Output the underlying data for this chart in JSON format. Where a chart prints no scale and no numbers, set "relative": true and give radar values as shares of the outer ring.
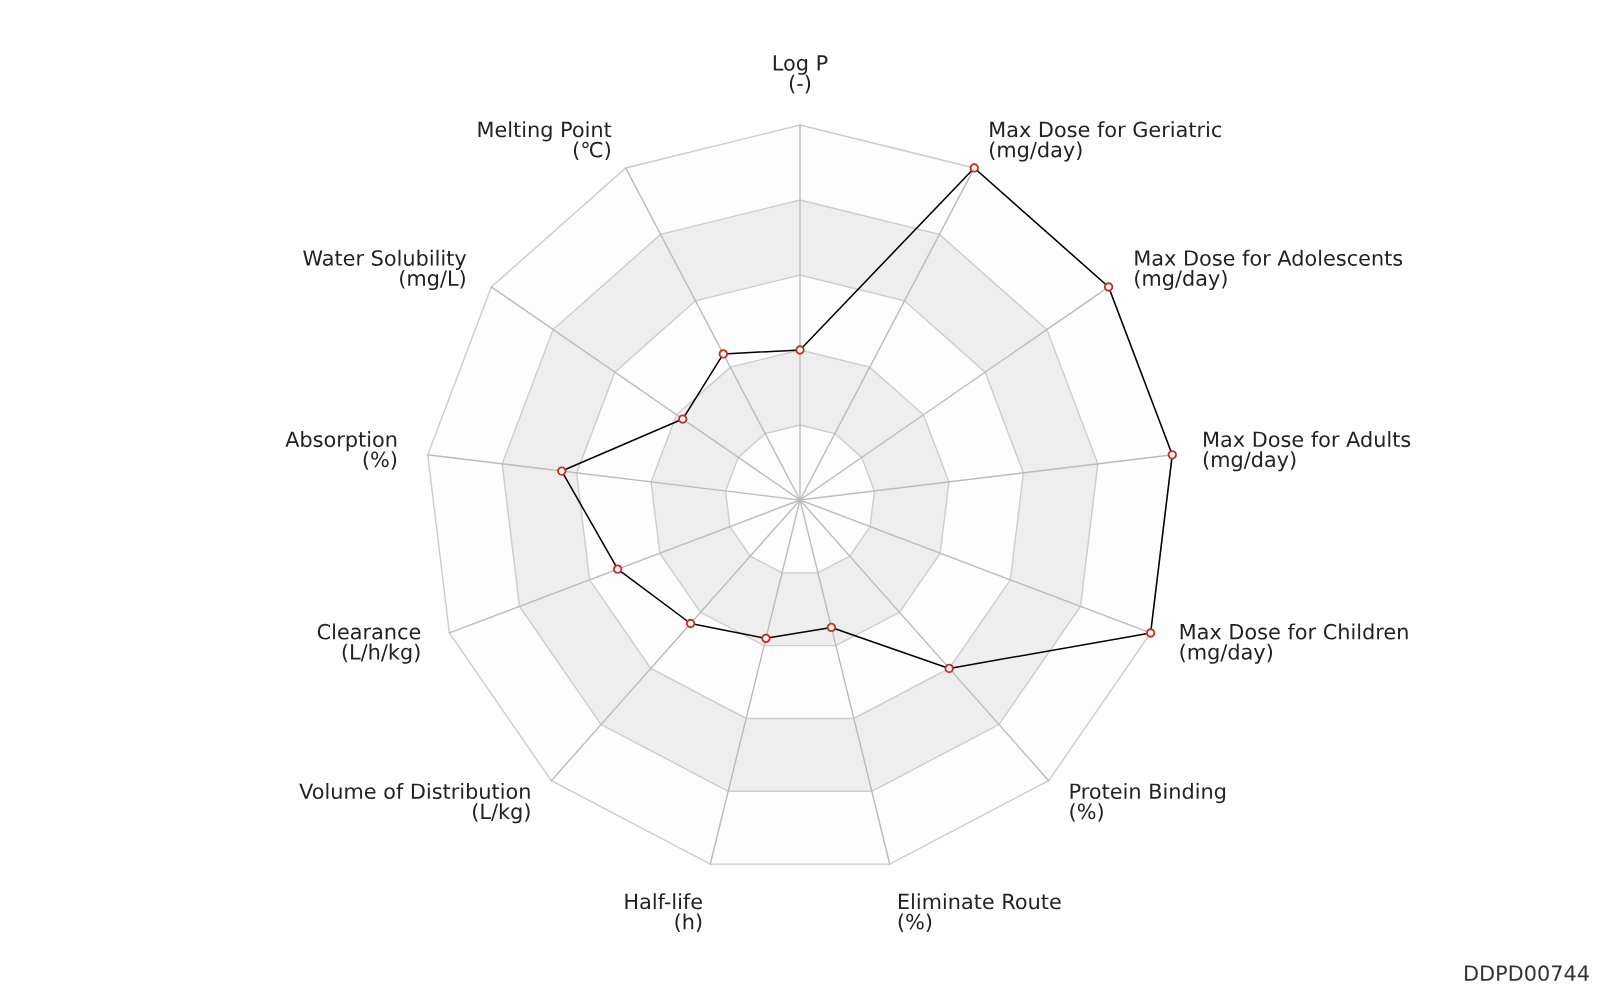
{
  "chart_data": {
    "type": "radar",
    "relative": true,
    "categories": [
      "Log P\n(-)",
      "Max Dose for Geriatric\n(mg/day)",
      "Max Dose for Adolescents\n(mg/day)",
      "Max Dose for Adults\n(mg/day)",
      "Max Dose for Children\n(mg/day)",
      "Protein Binding\n(%)",
      "Eliminate Route\n(%)",
      "Half-life\n(h)",
      "Volume of Distribution\n(L/kg)",
      "Clearance\n(L/h/kg)",
      "Absorption\n(%)",
      "Water Solubility\n(mg/L)",
      "Melting Point\n(℃)"
    ],
    "series": [
      {
        "color": "#000000",
        "values": [
          0.4,
          1,
          1,
          1,
          1,
          0.6,
          0.35,
          0.38,
          0.44,
          0.52,
          0.64,
          0.38,
          0.44
        ]
      }
    ],
    "marker": "circle",
    "line_style": "solid",
    "grid": true,
    "annotations": [
      "DDPD00744"
    ]
  }
}
